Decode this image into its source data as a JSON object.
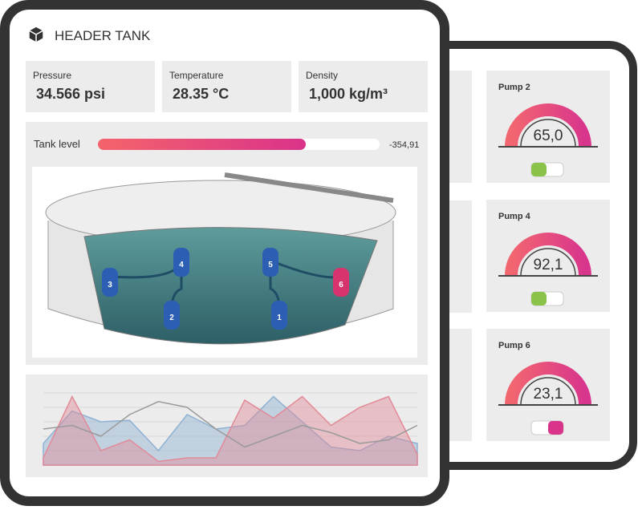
{
  "header": {
    "title": "HEADER TANK"
  },
  "stats": [
    {
      "label": "Pressure",
      "value": "34.566 psi"
    },
    {
      "label": "Temperature",
      "value": "28.35 °C"
    },
    {
      "label": "Density",
      "value": "1,000 kg/m³"
    }
  ],
  "tank_level": {
    "label": "Tank level",
    "value": "-354,91"
  },
  "tank_pumps": [
    "1",
    "2",
    "3",
    "4",
    "5",
    "6"
  ],
  "pumps": [
    {
      "name": "Pump 2",
      "reading": "65,0",
      "toggle": "on"
    },
    {
      "name": "Pump 4",
      "reading": "92,1",
      "toggle": "on"
    },
    {
      "name": "Pump 6",
      "reading": "23,1",
      "toggle": "off"
    }
  ],
  "trend": {
    "ylim": [
      0,
      100
    ],
    "series": [
      {
        "color": "#8fb2d3",
        "values": [
          30,
          75,
          60,
          62,
          20,
          70,
          50,
          55,
          95,
          60,
          25,
          20,
          40,
          30
        ]
      },
      {
        "color": "#e28a98",
        "values": [
          10,
          95,
          20,
          35,
          5,
          10,
          10,
          90,
          65,
          95,
          55,
          80,
          95,
          15
        ]
      },
      {
        "color": "#9a9a9a",
        "values": [
          50,
          55,
          40,
          70,
          88,
          80,
          50,
          25,
          40,
          55,
          45,
          30,
          35,
          55
        ]
      }
    ]
  }
}
